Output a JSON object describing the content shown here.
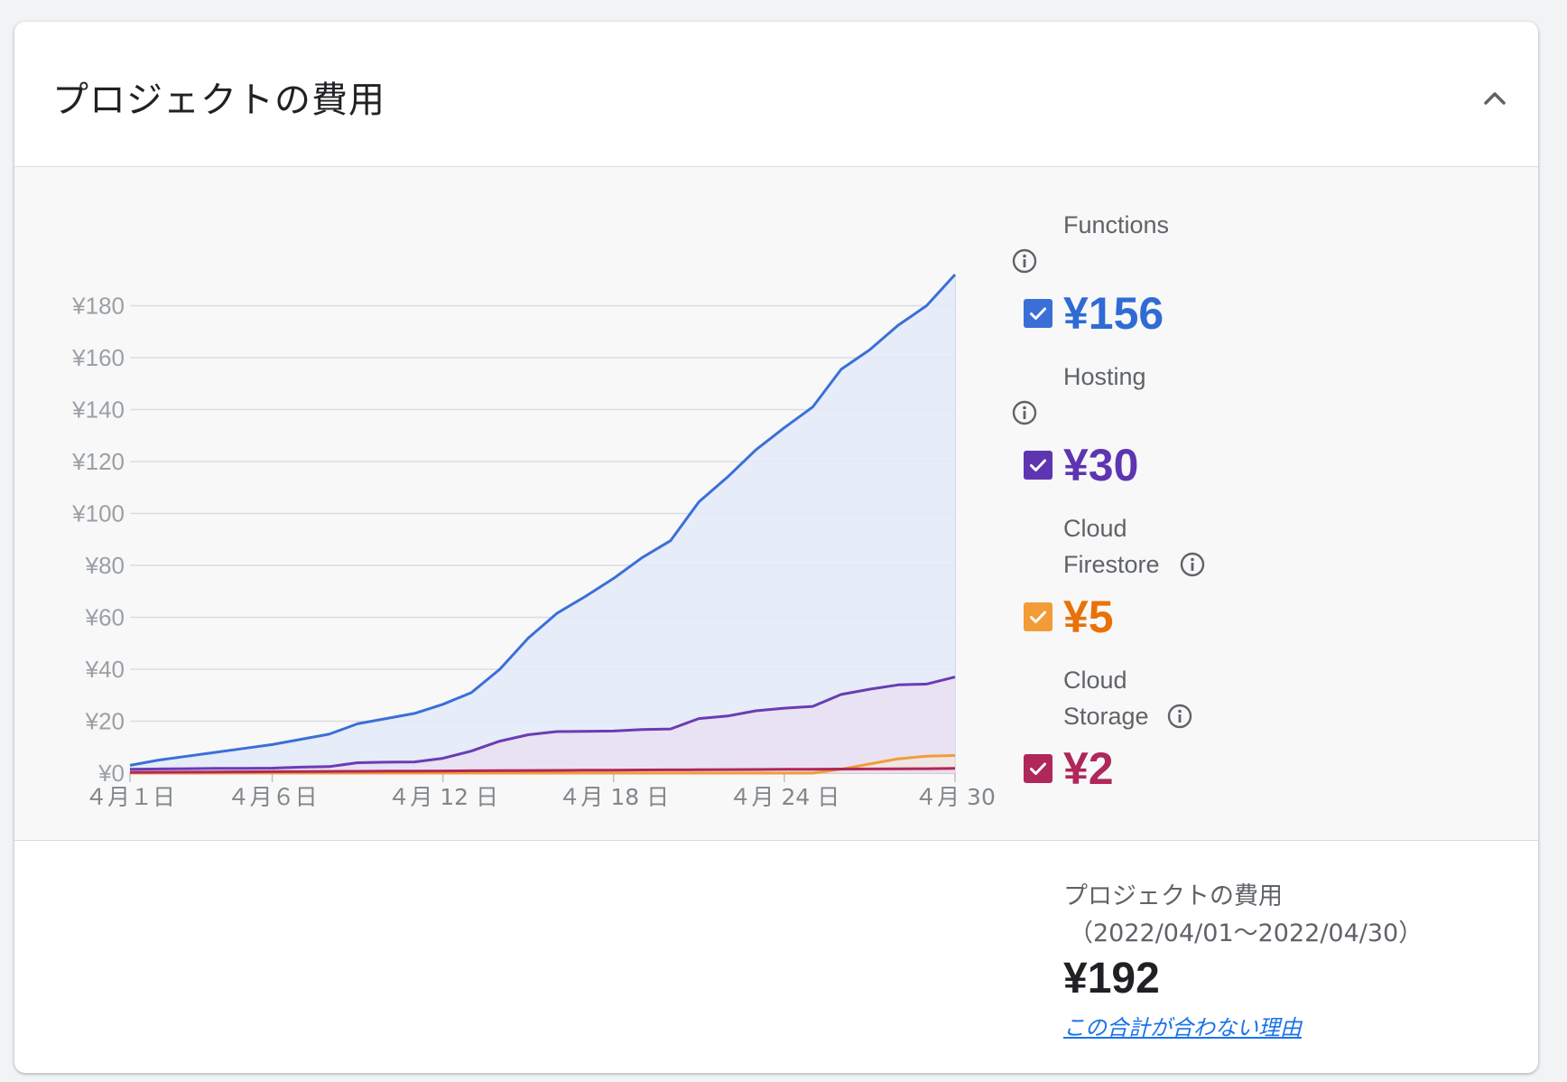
{
  "header": {
    "title": "プロジェクトの費用",
    "collapse_icon": "chevron-up-icon"
  },
  "chart_data": {
    "type": "area",
    "x": [
      "4月1日",
      "4月2日",
      "4月3日",
      "4月4日",
      "4月5日",
      "4月6日",
      "4月7日",
      "4月8日",
      "4月9日",
      "4月10日",
      "4月11日",
      "4月12日",
      "4月13日",
      "4月14日",
      "4月15日",
      "4月16日",
      "4月17日",
      "4月18日",
      "4月19日",
      "4月20日",
      "4月21日",
      "4月22日",
      "4月23日",
      "4月24日",
      "4月25日",
      "4月26日",
      "4月27日",
      "4月28日",
      "4月29日",
      "4月30日"
    ],
    "x_tick_labels": [
      "４月１日",
      "４月６日",
      "４月 12 日",
      "４月 18 日",
      "４月 24 日",
      "４月 30"
    ],
    "x_tick_indices": [
      0,
      5,
      11,
      17,
      23,
      29
    ],
    "y_tick_labels": [
      "¥0",
      "¥20",
      "¥40",
      "¥60",
      "¥80",
      "¥100",
      "¥120",
      "¥140",
      "¥160",
      "¥180"
    ],
    "ylim": [
      0,
      190
    ],
    "grid": true,
    "series": [
      {
        "name": "Functions",
        "color": "#3b6fd8",
        "fill": "#e3eaf8",
        "values": [
          3,
          5,
          6.5,
          8,
          9.5,
          11,
          13,
          15,
          19,
          21,
          23,
          26.5,
          31,
          40,
          52,
          61.5,
          68,
          75,
          83,
          89.5,
          104.5,
          114,
          124.5,
          133,
          141,
          155.5,
          163,
          172.5,
          180,
          192
        ]
      },
      {
        "name": "Hosting",
        "color": "#6a3cb4",
        "fill": "#e7e0f1",
        "values": [
          1.5,
          1.6,
          1.7,
          1.8,
          1.8,
          1.9,
          2.3,
          2.5,
          4,
          4.2,
          4.3,
          5.7,
          8.5,
          12.3,
          14.8,
          16,
          16.1,
          16.2,
          16.8,
          17,
          21,
          22,
          24,
          25,
          25.7,
          30.3,
          32.3,
          34,
          34.3,
          37
        ]
      },
      {
        "name": "Cloud Firestore",
        "color": "#f29c37",
        "fill": "#f1e6e2",
        "values": [
          0,
          0,
          0,
          0,
          0,
          0,
          0,
          0,
          0,
          0,
          0,
          0,
          0,
          0,
          0,
          0,
          0,
          0,
          0,
          0,
          0,
          0,
          0,
          0,
          0,
          1.5,
          3.5,
          5.5,
          6.5,
          6.8
        ]
      },
      {
        "name": "Cloud Storage",
        "color": "#b0275a",
        "fill": "#eadce8",
        "values": [
          0.3,
          0.35,
          0.4,
          0.45,
          0.5,
          0.55,
          0.6,
          0.65,
          0.7,
          0.75,
          0.8,
          0.85,
          0.9,
          0.95,
          1,
          1.05,
          1.1,
          1.15,
          1.2,
          1.25,
          1.3,
          1.35,
          1.4,
          1.45,
          1.5,
          1.55,
          1.6,
          1.65,
          1.7,
          1.8
        ]
      }
    ]
  },
  "legend": [
    {
      "name_lines": [
        "Functions"
      ],
      "value": "¥156",
      "color": "#3b6fd8",
      "value_color": "#2f6bd4",
      "checked": true
    },
    {
      "name_lines": [
        "Hosting"
      ],
      "value": "¥30",
      "color": "#5e35b1",
      "value_color": "#5e35b1",
      "checked": true
    },
    {
      "name_lines": [
        "Cloud",
        "Firestore"
      ],
      "value": "¥5",
      "color": "#f29c37",
      "value_color": "#e8710a",
      "checked": true
    },
    {
      "name_lines": [
        "Cloud",
        "Storage"
      ],
      "value": "¥2",
      "color": "#b0275a",
      "value_color": "#b0275a",
      "checked": true
    }
  ],
  "summary": {
    "label": "プロジェクトの費用",
    "range": "（2022/04/01〜2022/04/30）",
    "total": "¥192",
    "link": "この合計が合わない理由"
  }
}
